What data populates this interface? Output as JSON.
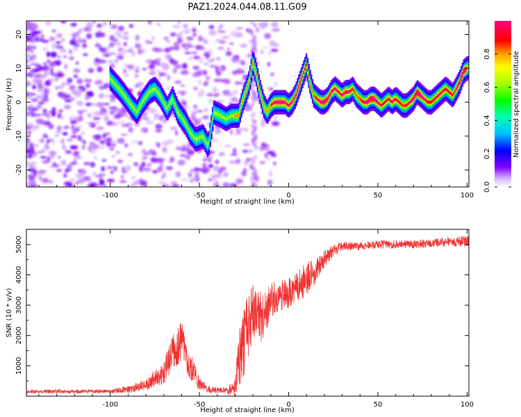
{
  "title": "PAZ1.2024.044.08.11.G09",
  "chart_data": [
    {
      "type": "heatmap",
      "xlabel": "Height of straight line (km)",
      "ylabel": "Frequency (Hz)",
      "xlim": [
        -147,
        101
      ],
      "ylim": [
        -25,
        24
      ],
      "x_ticks": [
        -100,
        -50,
        0,
        50,
        100
      ],
      "y_ticks": [
        -20,
        -10,
        0,
        10,
        20
      ],
      "colorbar": {
        "label": "Normalized spectral amplitude",
        "range": [
          0,
          1
        ],
        "ticks": [
          0.0,
          0.2,
          0.4,
          0.6,
          0.8
        ],
        "tick_labels": [
          "0.0",
          "0.2",
          "0.4",
          "0.6",
          "0.8"
        ]
      },
      "ridge": {
        "x": [
          -100,
          -95,
          -92,
          -88,
          -85,
          -82,
          -78,
          -75,
          -72,
          -68,
          -65,
          -62,
          -58,
          -55,
          -52,
          -48,
          -45,
          -42,
          -38,
          -35,
          -32,
          -28,
          -26,
          -24,
          -22,
          -20,
          -18,
          -16,
          -14,
          -12,
          -10,
          -8,
          -6,
          -4,
          -2,
          0,
          2,
          4,
          6,
          8,
          10,
          12,
          14,
          16,
          18,
          20,
          22,
          24,
          26,
          28,
          30,
          32,
          34,
          36,
          38,
          40,
          42,
          44,
          46,
          48,
          50,
          52,
          54,
          56,
          58,
          60,
          62,
          64,
          66,
          68,
          70,
          72,
          74,
          76,
          78,
          80,
          82,
          84,
          86,
          88,
          90,
          92,
          94,
          96,
          98,
          100
        ],
        "y": [
          7,
          4,
          2,
          -1,
          -3,
          0,
          3,
          4,
          2,
          -2,
          1,
          -3,
          -6,
          -9,
          -11,
          -10,
          -13,
          -3,
          -4,
          -5,
          -4,
          -4,
          0,
          3,
          6,
          12,
          8,
          3,
          -1,
          -3,
          -1,
          0,
          0,
          0,
          0,
          -1,
          0,
          2,
          5,
          8,
          11,
          6,
          2,
          1,
          0,
          0,
          1,
          3,
          4,
          3,
          2,
          3,
          3,
          4,
          2,
          1,
          0,
          0,
          1,
          1,
          0,
          -1,
          0,
          1,
          0,
          1,
          0,
          -1,
          -1,
          0,
          1,
          3,
          2,
          1,
          0,
          0,
          1,
          2,
          3,
          4,
          3,
          2,
          4,
          6,
          9,
          10
        ]
      }
    },
    {
      "type": "line",
      "xlabel": "Height of straight line (km)",
      "ylabel": "SNR (10 * v/v)",
      "xlim": [
        -147,
        101
      ],
      "ylim": [
        0,
        5500
      ],
      "x_ticks": [
        -100,
        -50,
        0,
        50,
        100
      ],
      "y_ticks": [
        1000,
        2000,
        3000,
        4000,
        5000
      ],
      "color": "#ee3333",
      "envelope": {
        "x": [
          -147,
          -100,
          -90,
          -80,
          -70,
          -65,
          -60,
          -55,
          -50,
          -45,
          -40,
          -35,
          -30,
          -28,
          -25,
          -20,
          -18,
          -15,
          -12,
          -10,
          -5,
          0,
          5,
          10,
          15,
          20,
          25,
          30,
          40,
          50,
          60,
          70,
          80,
          90,
          100
        ],
        "mean": [
          150,
          160,
          220,
          380,
          800,
          1400,
          1800,
          1000,
          400,
          220,
          200,
          190,
          250,
          1200,
          1800,
          2800,
          3000,
          2500,
          2900,
          3200,
          3300,
          3400,
          3600,
          3900,
          4100,
          4500,
          4800,
          4950,
          4950,
          5000,
          5000,
          5000,
          5050,
          5100,
          5100
        ],
        "spread": [
          60,
          60,
          120,
          200,
          400,
          600,
          700,
          500,
          200,
          120,
          100,
          100,
          300,
          900,
          1200,
          1000,
          900,
          800,
          700,
          600,
          500,
          500,
          500,
          600,
          400,
          300,
          200,
          150,
          130,
          130,
          140,
          140,
          150,
          150,
          200
        ]
      }
    }
  ]
}
